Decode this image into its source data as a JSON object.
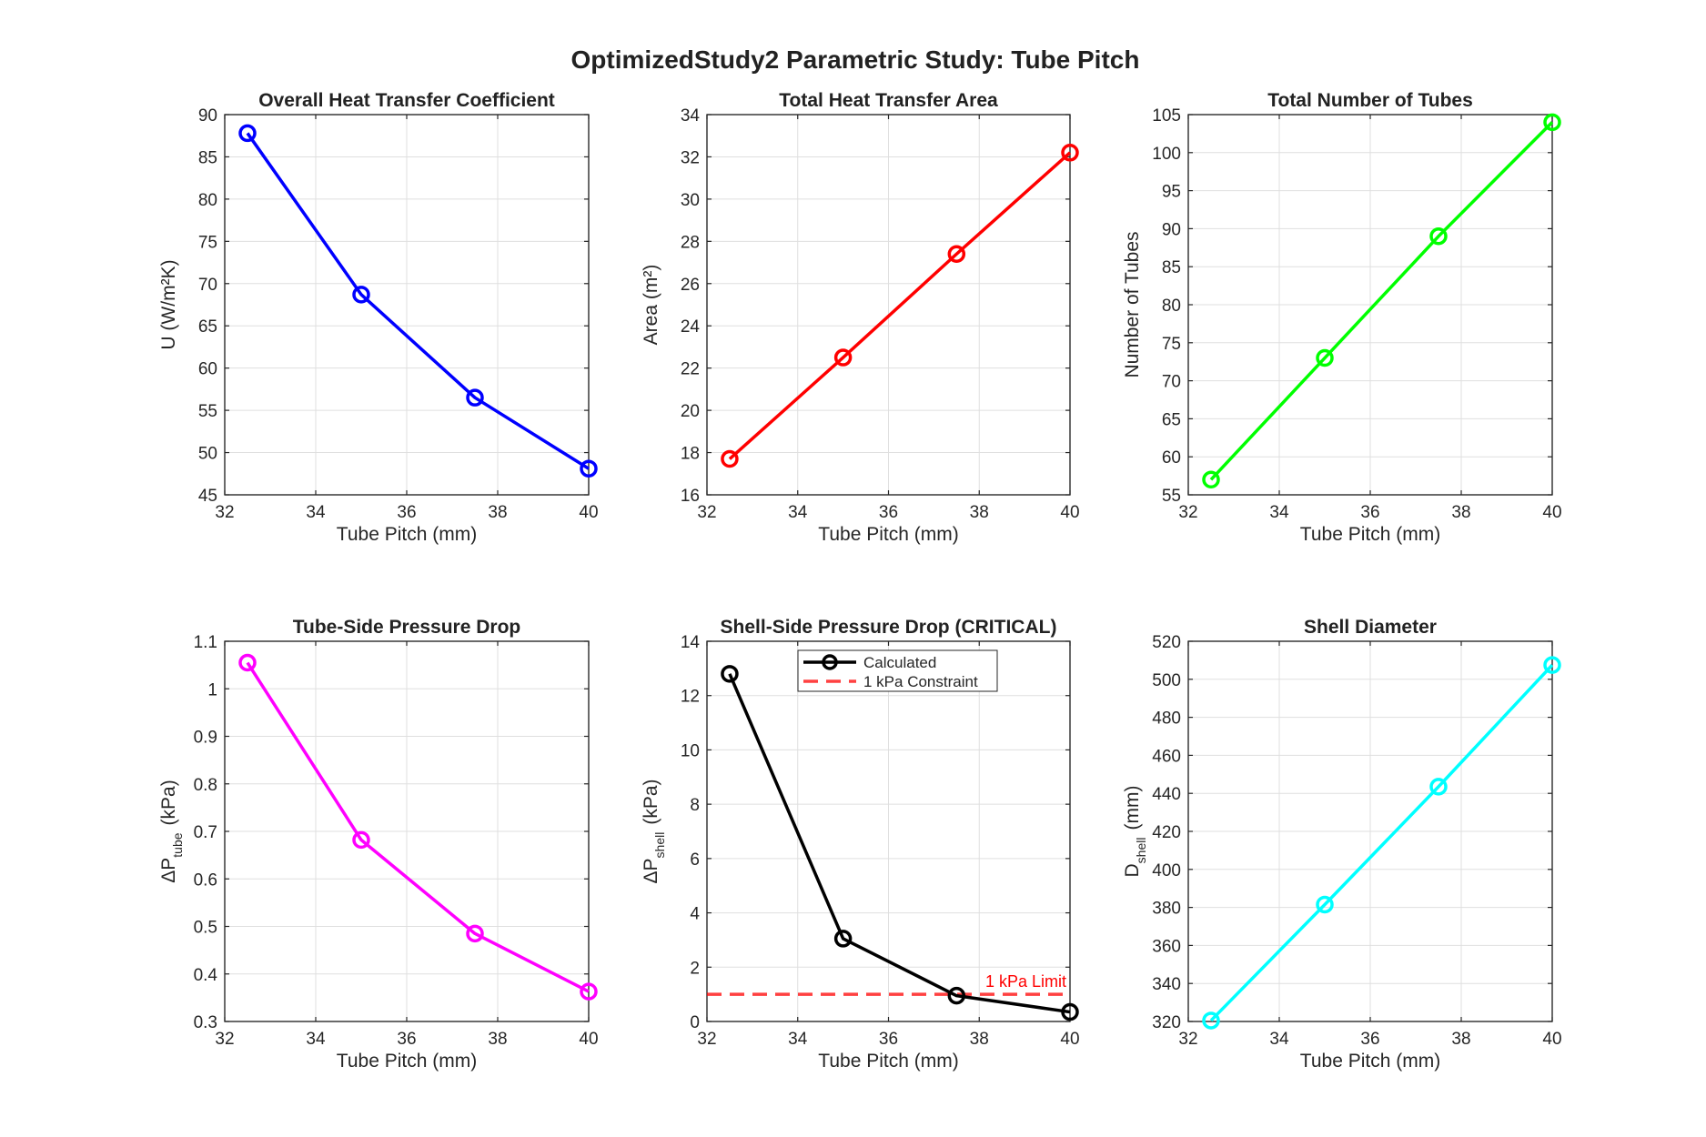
{
  "figure_title": "OptimizedStudy2 Parametric Study: Tube Pitch",
  "chart_data": [
    {
      "id": "u",
      "type": "line",
      "title": "Overall Heat Transfer Coefficient",
      "xlabel": "Tube Pitch (mm)",
      "ylabel": "U (W/m²K)",
      "x": [
        32.5,
        35,
        37.5,
        40
      ],
      "xlim": [
        32,
        40
      ],
      "xticks": [
        32,
        34,
        36,
        38,
        40
      ],
      "ylim": [
        45,
        90
      ],
      "yticks": [
        45,
        50,
        55,
        60,
        65,
        70,
        75,
        80,
        85,
        90
      ],
      "grid": true,
      "series": [
        {
          "values": [
            87.8,
            68.7,
            56.5,
            48.1
          ],
          "color": "#0000ff",
          "marker": "circle"
        }
      ]
    },
    {
      "id": "area",
      "type": "line",
      "title": "Total Heat Transfer Area",
      "xlabel": "Tube Pitch (mm)",
      "ylabel": "Area (m²)",
      "x": [
        32.5,
        35,
        37.5,
        40
      ],
      "xlim": [
        32,
        40
      ],
      "xticks": [
        32,
        34,
        36,
        38,
        40
      ],
      "ylim": [
        16,
        34
      ],
      "yticks": [
        16,
        18,
        20,
        22,
        24,
        26,
        28,
        30,
        32,
        34
      ],
      "grid": true,
      "series": [
        {
          "values": [
            17.7,
            22.5,
            27.4,
            32.2
          ],
          "color": "#ff0000",
          "marker": "circle"
        }
      ]
    },
    {
      "id": "tubes",
      "type": "line",
      "title": "Total Number of Tubes",
      "xlabel": "Tube Pitch (mm)",
      "ylabel": "Number of Tubes",
      "x": [
        32.5,
        35,
        37.5,
        40
      ],
      "xlim": [
        32,
        40
      ],
      "xticks": [
        32,
        34,
        36,
        38,
        40
      ],
      "ylim": [
        55,
        105
      ],
      "yticks": [
        55,
        60,
        65,
        70,
        75,
        80,
        85,
        90,
        95,
        100,
        105
      ],
      "grid": true,
      "series": [
        {
          "values": [
            57,
            73,
            89,
            104
          ],
          "color": "#00ff00",
          "marker": "circle"
        }
      ]
    },
    {
      "id": "dptube",
      "type": "line",
      "title": "Tube-Side Pressure Drop",
      "xlabel": "Tube Pitch (mm)",
      "ylabel_main": "ΔP",
      "ylabel_sub": "tube",
      "ylabel_unit": "(kPa)",
      "x": [
        32.5,
        35,
        37.5,
        40
      ],
      "xlim": [
        32,
        40
      ],
      "xticks": [
        32,
        34,
        36,
        38,
        40
      ],
      "ylim": [
        0.3,
        1.1
      ],
      "yticks": [
        0.3,
        0.4,
        0.5,
        0.6,
        0.7,
        0.8,
        0.9,
        1,
        1.1
      ],
      "grid": true,
      "series": [
        {
          "values": [
            1.055,
            0.682,
            0.485,
            0.363
          ],
          "color": "#ff00ff",
          "marker": "circle"
        }
      ]
    },
    {
      "id": "dpshell",
      "type": "line",
      "title": "Shell-Side Pressure Drop (CRITICAL)",
      "xlabel": "Tube Pitch (mm)",
      "ylabel_main": "ΔP",
      "ylabel_sub": "shell",
      "ylabel_unit": "(kPa)",
      "x": [
        32.5,
        35,
        37.5,
        40
      ],
      "xlim": [
        32,
        40
      ],
      "xticks": [
        32,
        34,
        36,
        38,
        40
      ],
      "ylim": [
        0,
        14
      ],
      "yticks": [
        0,
        2,
        4,
        6,
        8,
        10,
        12,
        14
      ],
      "grid": true,
      "legend": "top",
      "series": [
        {
          "name": "Calculated",
          "values": [
            12.8,
            3.05,
            0.95,
            0.35
          ],
          "color": "#000000",
          "marker": "circle"
        }
      ],
      "constraint": {
        "name": "1 kPa Constraint",
        "value": 1,
        "color": "#ff0000",
        "label": "1 kPa Limit"
      }
    },
    {
      "id": "dshell",
      "type": "line",
      "title": "Shell Diameter",
      "xlabel": "Tube Pitch (mm)",
      "ylabel_main": "D",
      "ylabel_sub": "shell",
      "ylabel_unit": "(mm)",
      "x": [
        32.5,
        35,
        37.5,
        40
      ],
      "xlim": [
        32,
        40
      ],
      "xticks": [
        32,
        34,
        36,
        38,
        40
      ],
      "ylim": [
        320,
        520
      ],
      "yticks": [
        320,
        340,
        360,
        380,
        400,
        420,
        440,
        460,
        480,
        500,
        520
      ],
      "grid": true,
      "series": [
        {
          "values": [
            320.5,
            381.5,
            443.5,
            507.5
          ],
          "color": "#00ffff",
          "marker": "circle"
        }
      ]
    }
  ]
}
